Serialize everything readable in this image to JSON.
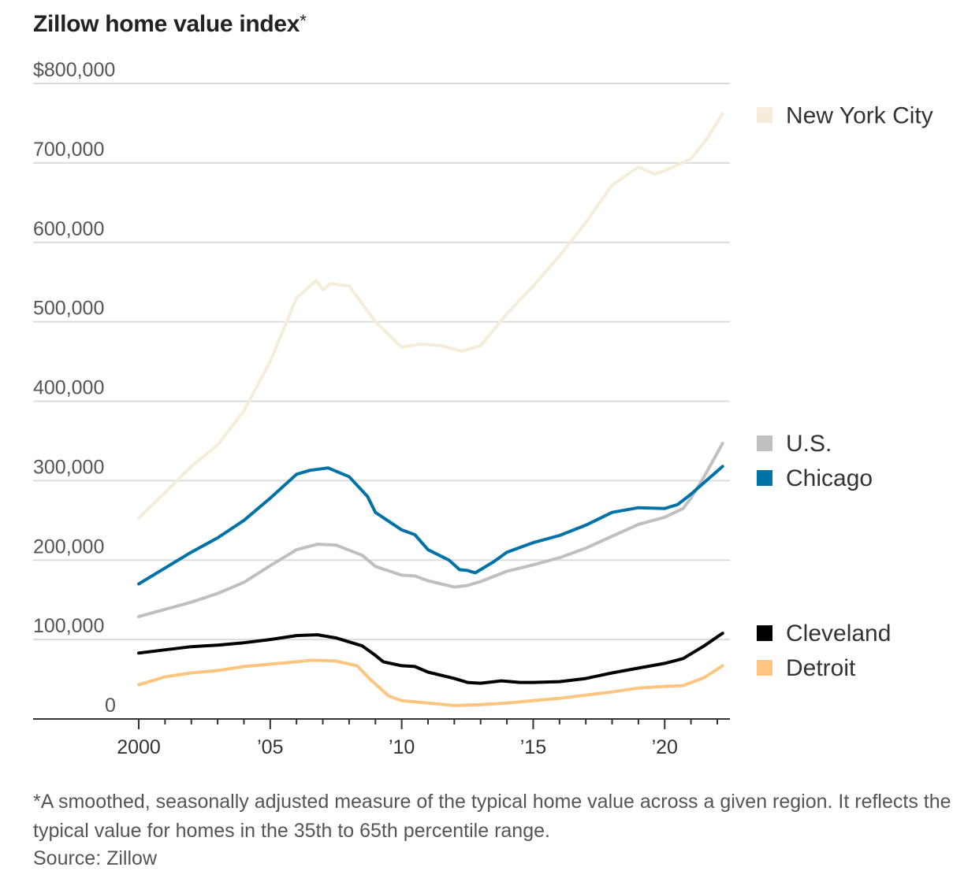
{
  "chart_data": {
    "type": "line",
    "title": "Zillow home value index",
    "title_marker": "*",
    "xlabel": "",
    "ylabel": "",
    "xlim": [
      2000,
      2022.3
    ],
    "ylim": [
      0,
      800000
    ],
    "y_ticks": [
      {
        "value": 0,
        "label": "0"
      },
      {
        "value": 100000,
        "label": "100,000"
      },
      {
        "value": 200000,
        "label": "200,000"
      },
      {
        "value": 300000,
        "label": "300,000"
      },
      {
        "value": 400000,
        "label": "400,000"
      },
      {
        "value": 500000,
        "label": "500,000"
      },
      {
        "value": 600000,
        "label": "600,000"
      },
      {
        "value": 700000,
        "label": "700,000"
      },
      {
        "value": 800000,
        "label": "$800,000"
      }
    ],
    "x_ticks": [
      {
        "value": 2000,
        "label": "2000"
      },
      {
        "value": 2005,
        "label": "’05"
      },
      {
        "value": 2010,
        "label": "’10"
      },
      {
        "value": 2015,
        "label": "’15"
      },
      {
        "value": 2020,
        "label": "’20"
      }
    ],
    "grid": true,
    "legend_position": "right",
    "series": [
      {
        "name": "New York City",
        "color": "#f5ecd9",
        "legend_value": 760000,
        "points": [
          [
            2000,
            253000
          ],
          [
            2001,
            285000
          ],
          [
            2002,
            318000
          ],
          [
            2003,
            345000
          ],
          [
            2004,
            388000
          ],
          [
            2005,
            450000
          ],
          [
            2006,
            530000
          ],
          [
            2006.75,
            552000
          ],
          [
            2007,
            540000
          ],
          [
            2007.3,
            548000
          ],
          [
            2008,
            545000
          ],
          [
            2009,
            500000
          ],
          [
            2010,
            468000
          ],
          [
            2010.7,
            472000
          ],
          [
            2011.5,
            470000
          ],
          [
            2012.3,
            463000
          ],
          [
            2013,
            470000
          ],
          [
            2014,
            510000
          ],
          [
            2015,
            545000
          ],
          [
            2016,
            583000
          ],
          [
            2017,
            625000
          ],
          [
            2018,
            672000
          ],
          [
            2019,
            695000
          ],
          [
            2019.6,
            686000
          ],
          [
            2020,
            690000
          ],
          [
            2021,
            705000
          ],
          [
            2021.6,
            730000
          ],
          [
            2022.2,
            762000
          ]
        ]
      },
      {
        "name": "U.S.",
        "color": "#bfbfbf",
        "legend_value": 347000,
        "points": [
          [
            2000,
            129000
          ],
          [
            2001,
            138000
          ],
          [
            2002,
            147000
          ],
          [
            2003,
            158000
          ],
          [
            2004,
            172000
          ],
          [
            2005,
            193000
          ],
          [
            2006,
            213000
          ],
          [
            2006.8,
            220000
          ],
          [
            2007.5,
            219000
          ],
          [
            2008.5,
            206000
          ],
          [
            2009,
            192000
          ],
          [
            2010,
            181000
          ],
          [
            2010.5,
            180000
          ],
          [
            2011,
            174000
          ],
          [
            2012,
            166000
          ],
          [
            2012.5,
            168000
          ],
          [
            2013,
            173000
          ],
          [
            2014,
            186000
          ],
          [
            2015,
            194000
          ],
          [
            2016,
            203000
          ],
          [
            2017,
            215000
          ],
          [
            2018,
            230000
          ],
          [
            2019,
            245000
          ],
          [
            2020,
            254000
          ],
          [
            2020.7,
            265000
          ],
          [
            2021,
            278000
          ],
          [
            2021.5,
            305000
          ],
          [
            2022.2,
            347000
          ]
        ]
      },
      {
        "name": "Chicago",
        "color": "#0072a8",
        "legend_value": 318000,
        "points": [
          [
            2000,
            170000
          ],
          [
            2001,
            190000
          ],
          [
            2002,
            210000
          ],
          [
            2003,
            228000
          ],
          [
            2004,
            250000
          ],
          [
            2005,
            278000
          ],
          [
            2006,
            308000
          ],
          [
            2006.5,
            313000
          ],
          [
            2007.2,
            316000
          ],
          [
            2008,
            305000
          ],
          [
            2008.7,
            280000
          ],
          [
            2009,
            260000
          ],
          [
            2010,
            238000
          ],
          [
            2010.5,
            232000
          ],
          [
            2011,
            213000
          ],
          [
            2011.8,
            200000
          ],
          [
            2012.2,
            188000
          ],
          [
            2012.5,
            187000
          ],
          [
            2012.8,
            184000
          ],
          [
            2013.5,
            198000
          ],
          [
            2014,
            210000
          ],
          [
            2015,
            222000
          ],
          [
            2016,
            231000
          ],
          [
            2017,
            244000
          ],
          [
            2018,
            260000
          ],
          [
            2019,
            266000
          ],
          [
            2020,
            265000
          ],
          [
            2020.5,
            270000
          ],
          [
            2021,
            283000
          ],
          [
            2022.2,
            318000
          ]
        ]
      },
      {
        "name": "Cleveland",
        "color": "#000000",
        "legend_value": 108000,
        "points": [
          [
            2000,
            83000
          ],
          [
            2001,
            87000
          ],
          [
            2002,
            91000
          ],
          [
            2003,
            93000
          ],
          [
            2004,
            96000
          ],
          [
            2005,
            100000
          ],
          [
            2006,
            105000
          ],
          [
            2006.8,
            106000
          ],
          [
            2007.5,
            102000
          ],
          [
            2008.5,
            92000
          ],
          [
            2009,
            80000
          ],
          [
            2009.3,
            72000
          ],
          [
            2010,
            67000
          ],
          [
            2010.5,
            66000
          ],
          [
            2011,
            59000
          ],
          [
            2012,
            51000
          ],
          [
            2012.5,
            46000
          ],
          [
            2013,
            45000
          ],
          [
            2013.8,
            48000
          ],
          [
            2014.5,
            46000
          ],
          [
            2015,
            46000
          ],
          [
            2016,
            47000
          ],
          [
            2017,
            51000
          ],
          [
            2018,
            58000
          ],
          [
            2019,
            64000
          ],
          [
            2020,
            70000
          ],
          [
            2020.7,
            76000
          ],
          [
            2021.5,
            92000
          ],
          [
            2022.2,
            108000
          ]
        ]
      },
      {
        "name": "Detroit",
        "color": "#fdc57f",
        "legend_value": 67000,
        "points": [
          [
            2000,
            43000
          ],
          [
            2001,
            53000
          ],
          [
            2002,
            58000
          ],
          [
            2003,
            61000
          ],
          [
            2004,
            66000
          ],
          [
            2005,
            69000
          ],
          [
            2006,
            72000
          ],
          [
            2006.6,
            74000
          ],
          [
            2007.5,
            73000
          ],
          [
            2008.3,
            67000
          ],
          [
            2008.8,
            50000
          ],
          [
            2009.5,
            29000
          ],
          [
            2010,
            23000
          ],
          [
            2011,
            20000
          ],
          [
            2012,
            17000
          ],
          [
            2013,
            18000
          ],
          [
            2014,
            20000
          ],
          [
            2015,
            23000
          ],
          [
            2016,
            26000
          ],
          [
            2017,
            30000
          ],
          [
            2018,
            34000
          ],
          [
            2019,
            39000
          ],
          [
            2020,
            41000
          ],
          [
            2020.7,
            42000
          ],
          [
            2021.5,
            52000
          ],
          [
            2022.2,
            67000
          ]
        ]
      }
    ],
    "footnote": "*A smoothed, seasonally adjusted measure of the typical home value across a given region. It reflects the typical value for homes in the 35th to 65th percentile range.",
    "source": "Source: Zillow"
  }
}
